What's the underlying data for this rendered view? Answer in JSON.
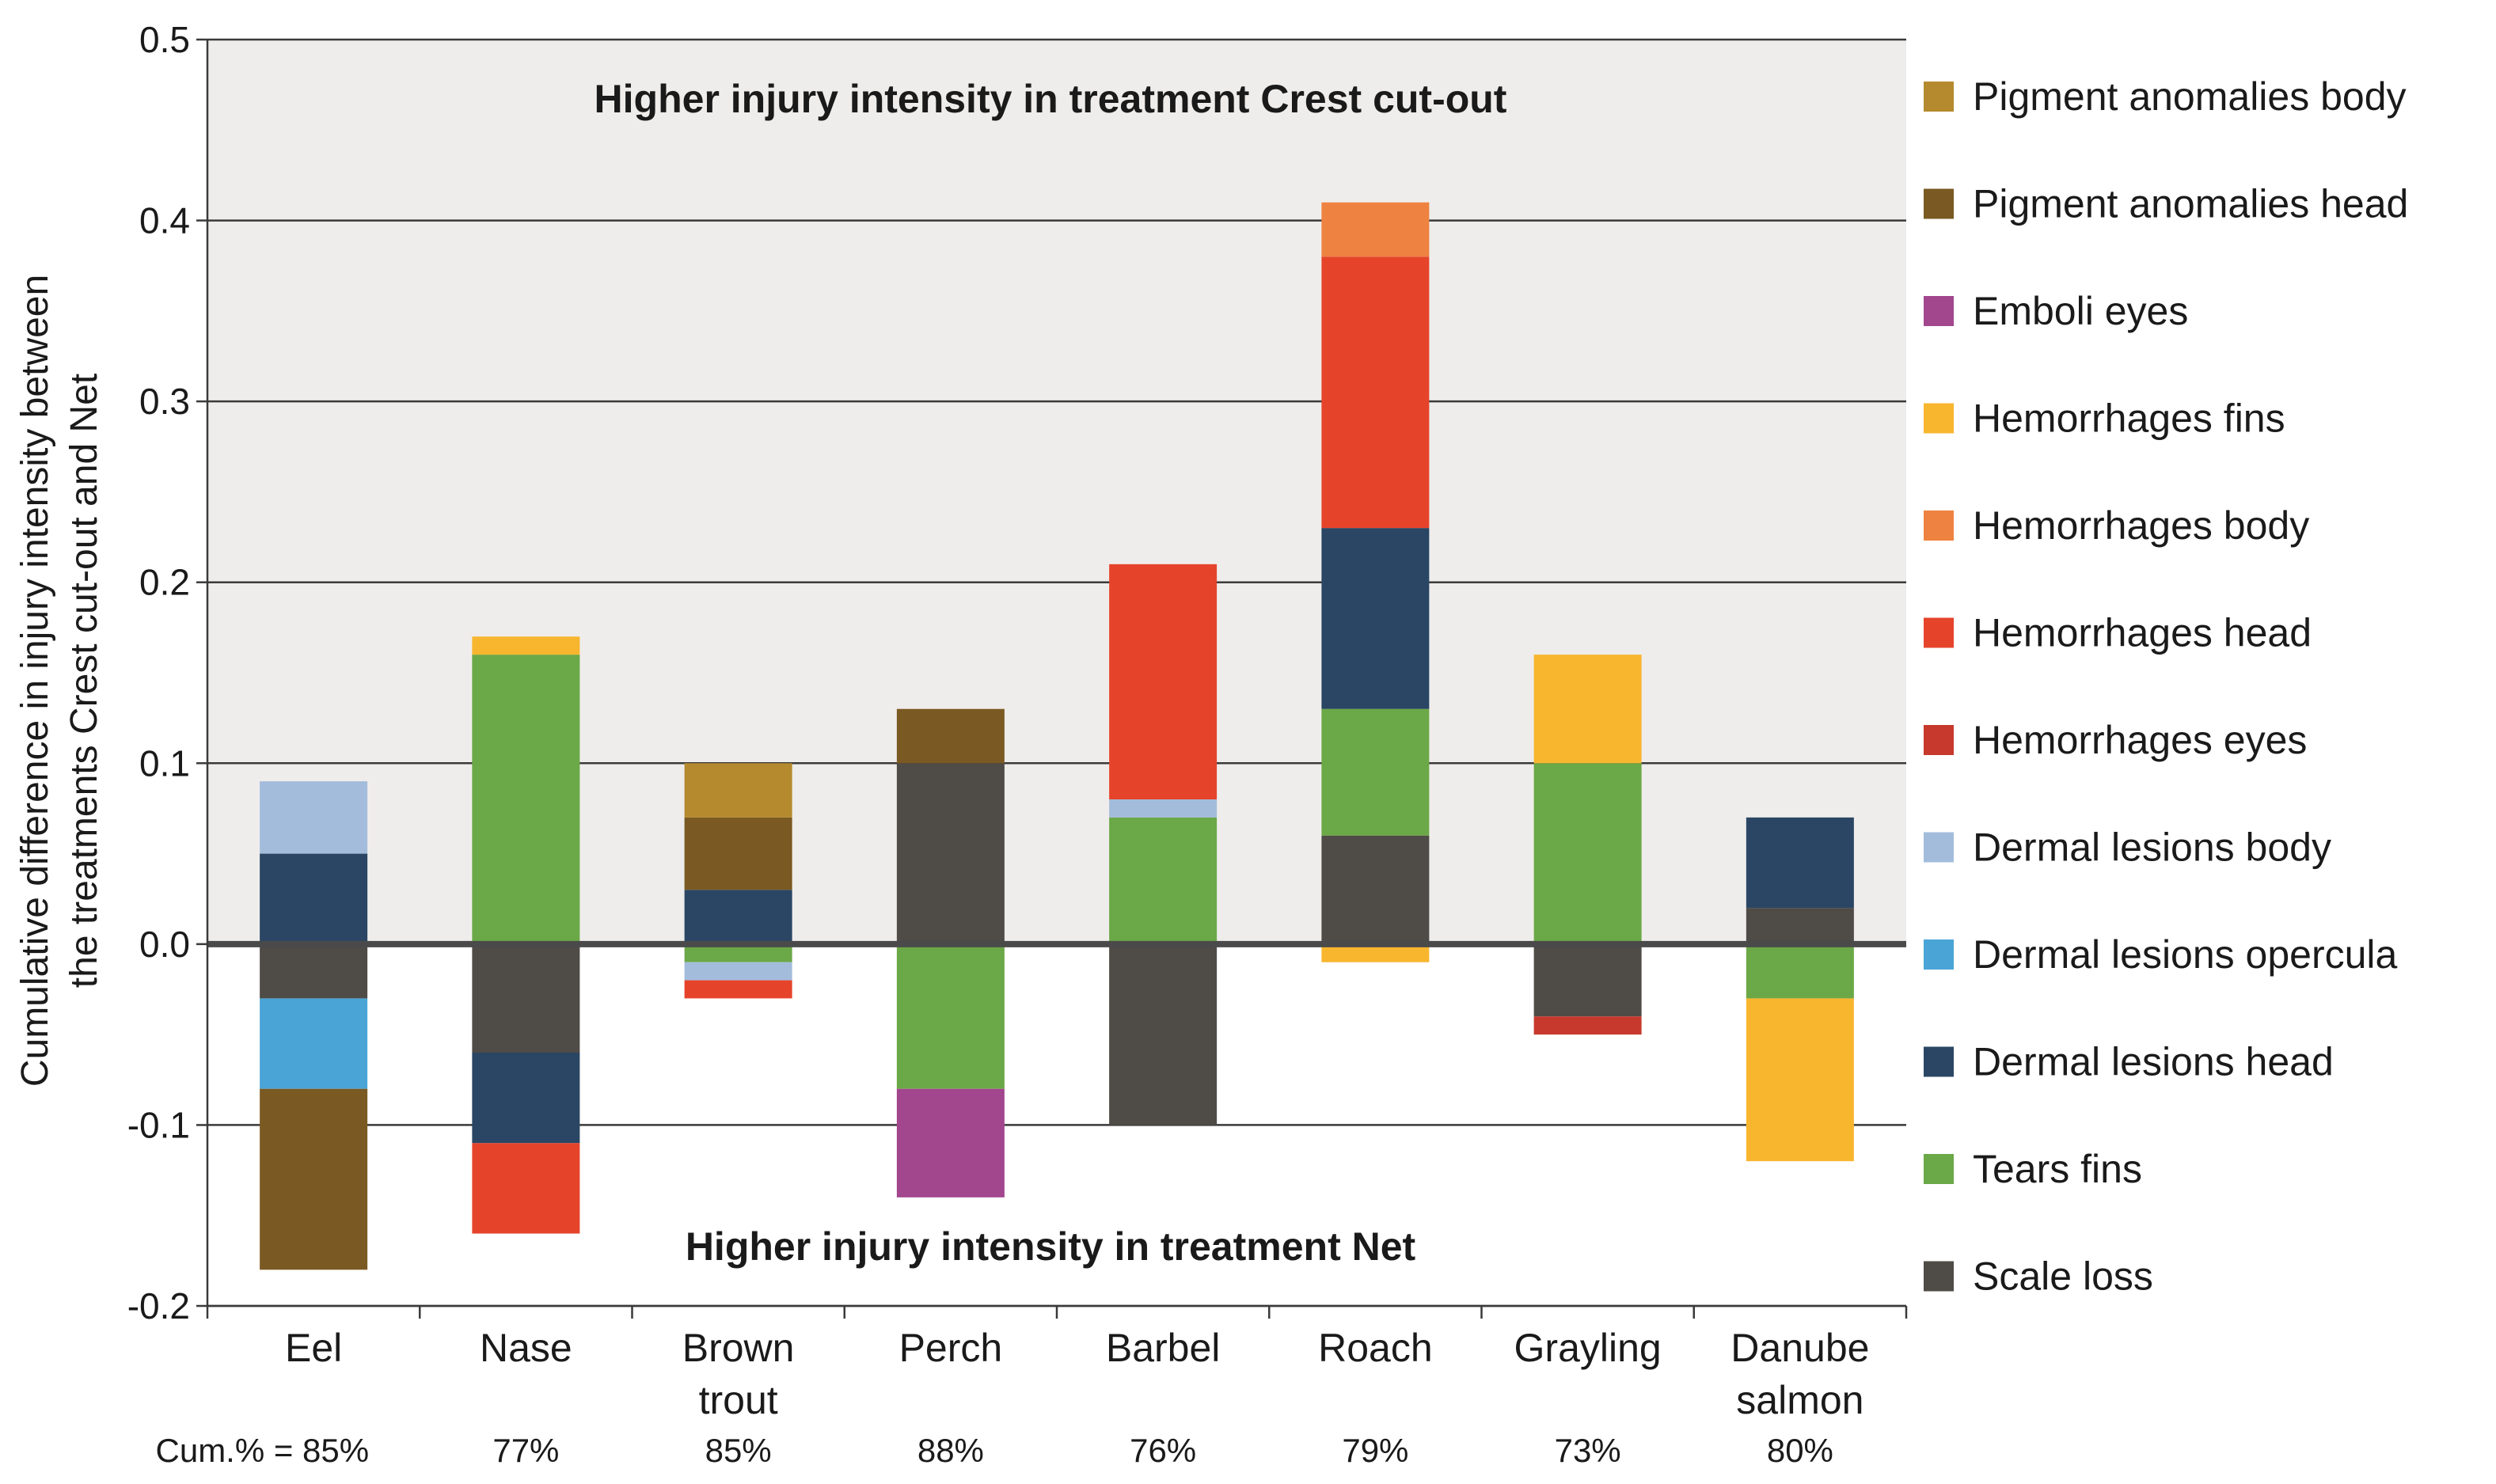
{
  "chart_data": {
    "type": "bar",
    "stacked": true,
    "ylabel_lines": [
      "Cumulative difference in injury intensity between",
      "the treatments Crest cut-out and Net"
    ],
    "ylim": [
      -0.2,
      0.5
    ],
    "yticks": [
      {
        "value": 0.5,
        "label": "0.5"
      },
      {
        "value": 0.4,
        "label": "0.4"
      },
      {
        "value": 0.3,
        "label": "0.3"
      },
      {
        "value": 0.2,
        "label": "0.2"
      },
      {
        "value": 0.1,
        "label": "0.1"
      },
      {
        "value": 0.0,
        "label": "0.0"
      },
      {
        "value": -0.1,
        "label": "-0.1"
      },
      {
        "value": -0.2,
        "label": "-0.2"
      }
    ],
    "annotation_top": "Higher injury intensity in treatment Crest cut-out",
    "annotation_bottom": "Higher injury intensity in treatment Net",
    "cum_prefix": "Cum.% = ",
    "categories": [
      {
        "lines": [
          "Eel"
        ],
        "cum": "85%"
      },
      {
        "lines": [
          "Nase"
        ],
        "cum": "77%"
      },
      {
        "lines": [
          "Brown",
          "trout"
        ],
        "cum": "85%"
      },
      {
        "lines": [
          "Perch"
        ],
        "cum": "88%"
      },
      {
        "lines": [
          "Barbel"
        ],
        "cum": "76%"
      },
      {
        "lines": [
          "Roach"
        ],
        "cum": "79%"
      },
      {
        "lines": [
          "Grayling"
        ],
        "cum": "73%"
      },
      {
        "lines": [
          "Danube",
          "salmon"
        ],
        "cum": "80%"
      }
    ],
    "series": [
      {
        "name": "Pigment anomalies body",
        "color": "#B58A2E",
        "values": [
          0,
          0,
          0.03,
          0,
          0,
          0,
          0,
          0
        ]
      },
      {
        "name": "Pigment anomalies head",
        "color": "#7A5A22",
        "values": [
          -0.1,
          0,
          0.04,
          0.03,
          0,
          0,
          0,
          0
        ]
      },
      {
        "name": "Emboli eyes",
        "color": "#A2468E",
        "values": [
          0,
          0,
          0,
          -0.06,
          0,
          0,
          0,
          0
        ]
      },
      {
        "name": "Hemorrhages fins",
        "color": "#F8B62F",
        "values": [
          0,
          0.01,
          0,
          0,
          0,
          -0.01,
          0.06,
          -0.09
        ]
      },
      {
        "name": "Hemorrhages body",
        "color": "#EE8240",
        "values": [
          0,
          0,
          0,
          0,
          0,
          0.03,
          0,
          0
        ]
      },
      {
        "name": "Hemorrhages head",
        "color": "#E5442B",
        "values": [
          0,
          -0.05,
          -0.01,
          0,
          0.13,
          0.15,
          0,
          0
        ]
      },
      {
        "name": "Hemorrhages eyes",
        "color": "#C7392C",
        "values": [
          0,
          0,
          0,
          0,
          0,
          0,
          -0.01,
          0
        ]
      },
      {
        "name": "Dermal lesions body",
        "color": "#A3BCDB",
        "values": [
          0.04,
          0,
          -0.01,
          0,
          0.01,
          0,
          0,
          0
        ]
      },
      {
        "name": "Dermal lesions opercula",
        "color": "#4AA4D6",
        "values": [
          -0.05,
          0,
          0,
          0,
          0,
          0,
          0,
          0
        ]
      },
      {
        "name": "Dermal lesions head",
        "color": "#2A4664",
        "values": [
          0.05,
          -0.05,
          0.03,
          0,
          0,
          0.1,
          0,
          0.05
        ]
      },
      {
        "name": "Tears fins",
        "color": "#6BA847",
        "values": [
          0,
          0.16,
          -0.01,
          -0.08,
          0.07,
          0.07,
          0.1,
          -0.03
        ]
      },
      {
        "name": "Scale loss",
        "color": "#4F4B46",
        "values": [
          -0.03,
          -0.06,
          0,
          0.1,
          -0.1,
          0.06,
          -0.04,
          0.02
        ]
      }
    ],
    "stack_order_positive": [
      "Scale loss",
      "Tears fins",
      "Dermal lesions head",
      "Dermal lesions opercula",
      "Dermal lesions body",
      "Hemorrhages eyes",
      "Hemorrhages head",
      "Hemorrhages body",
      "Hemorrhages fins",
      "Emboli eyes",
      "Pigment anomalies head",
      "Pigment anomalies body"
    ],
    "stack_order_negative": [
      "Scale loss",
      "Tears fins",
      "Dermal lesions head",
      "Dermal lesions opercula",
      "Dermal lesions body",
      "Hemorrhages eyes",
      "Hemorrhages head",
      "Hemorrhages body",
      "Hemorrhages fins",
      "Emboli eyes",
      "Pigment anomalies head",
      "Pigment anomalies body"
    ],
    "legend_position": "right",
    "background_positive": "#EFEDEB",
    "grid": true
  }
}
